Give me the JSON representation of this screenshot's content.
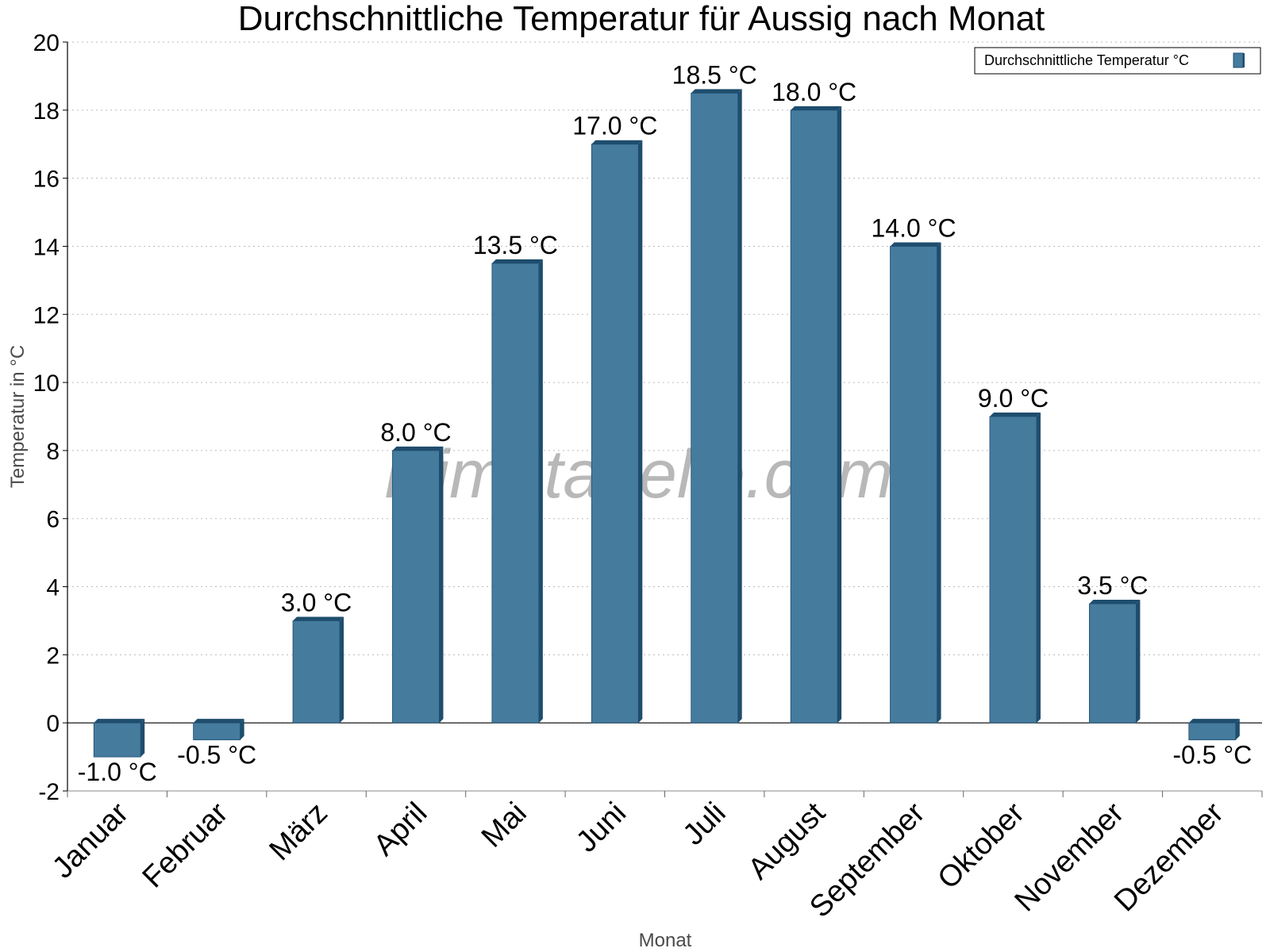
{
  "chart_data": {
    "type": "bar",
    "title": "Durchschnittliche Temperatur für Aussig nach Monat",
    "xlabel": "Monat",
    "ylabel": "Temperatur in °C",
    "categories": [
      "Januar",
      "Februar",
      "März",
      "April",
      "Mai",
      "Juni",
      "Juli",
      "August",
      "September",
      "Oktober",
      "November",
      "Dezember"
    ],
    "series": [
      {
        "name": "Durchschnittliche Temperatur °C",
        "values": [
          -1.0,
          -0.5,
          3.0,
          8.0,
          13.5,
          17.0,
          18.5,
          18.0,
          14.0,
          9.0,
          3.5,
          -0.5
        ],
        "labels": [
          "-1.0 °C",
          "-0.5 °C",
          "3.0 °C",
          "8.0 °C",
          "13.5 °C",
          "17.0 °C",
          "18.5 °C",
          "18.0 °C",
          "14.0 °C",
          "9.0 °C",
          "3.5 °C",
          "-0.5 °C"
        ]
      }
    ],
    "ylim": [
      -2,
      20
    ],
    "yticks": [
      -2,
      0,
      2,
      4,
      6,
      8,
      10,
      12,
      14,
      16,
      18,
      20
    ],
    "grid": true,
    "legend_position": "top-right",
    "watermark": "klimatabelle.com",
    "colors": {
      "bar_front": "#457b9d",
      "bar_side": "#1e4d6e",
      "bar_top": "#1e4d6e",
      "grid": "#bbbbbb",
      "axis": "#000000"
    }
  }
}
